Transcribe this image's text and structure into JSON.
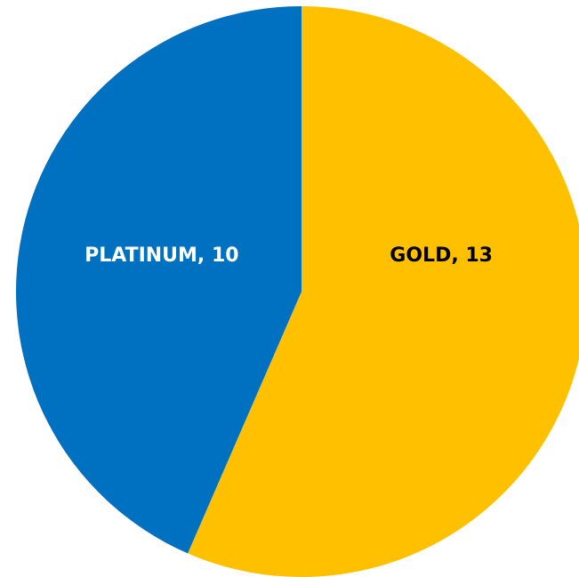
{
  "chart_data": {
    "type": "pie",
    "categories": [
      "GOLD",
      "PLATINUM"
    ],
    "values": [
      13,
      10
    ],
    "labels": [
      "GOLD, 13",
      "PLATINUM, 10"
    ],
    "colors": [
      "#FFC000",
      "#0070C0"
    ],
    "label_colors": [
      "#000000",
      "#ffffff"
    ],
    "start_angle_deg": 0,
    "direction": "clockwise",
    "title": "",
    "legend": "none"
  }
}
